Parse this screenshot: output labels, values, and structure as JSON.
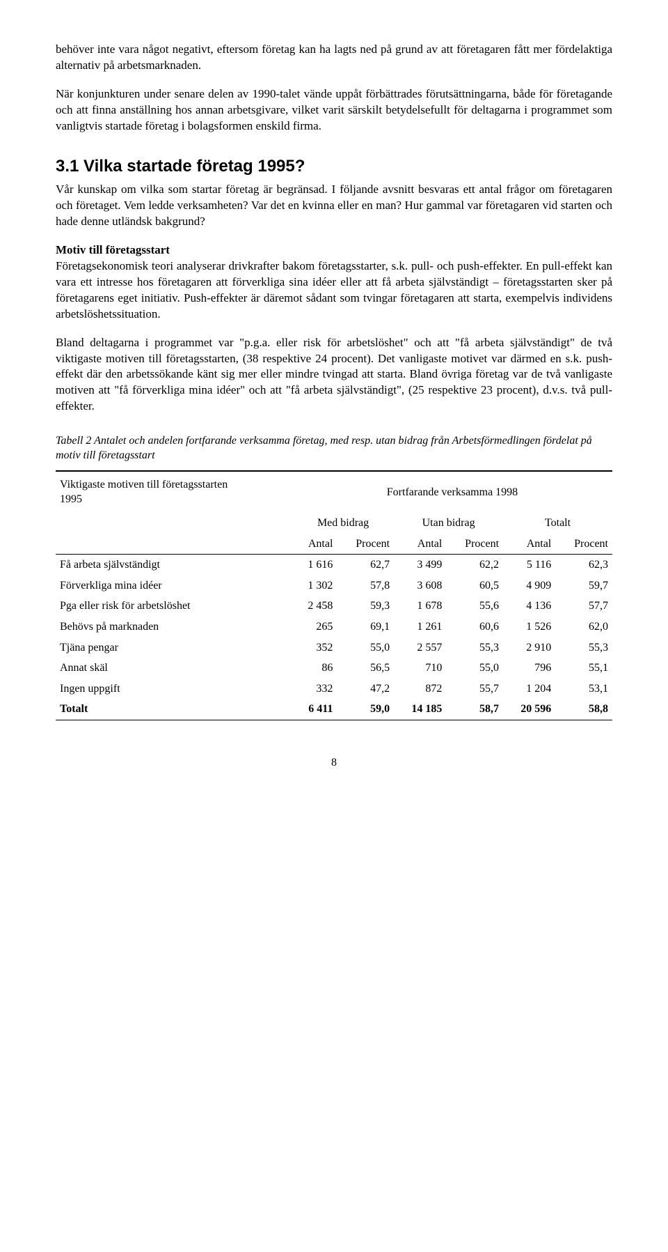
{
  "intro": {
    "p1": "behöver inte vara något negativt, eftersom företag kan ha lagts ned på grund av att företagaren fått mer fördelaktiga alternativ på arbetsmarknaden.",
    "p2": "När konjunkturen under senare delen av 1990-talet vände uppåt förbättrades förutsättningarna, både för företagande och att finna anställning hos annan arbetsgivare, vilket varit särskilt betydelsefullt för deltagarna i programmet som vanligtvis startade företag i bolagsformen enskild firma."
  },
  "heading": "3.1  Vilka startade företag 1995?",
  "body": {
    "p3": "Vår kunskap om vilka som startar företag är begränsad. I följande avsnitt besvaras ett antal frågor om företagaren och företaget. Vem ledde verksamheten? Var det en kvinna eller en man? Hur gammal var företagaren vid starten och hade denne utländsk bakgrund?",
    "sub1": "Motiv till företagsstart",
    "p4": "Företagsekonomisk teori analyserar drivkrafter bakom företagsstarter, s.k. pull- och push-effekter. En pull-effekt kan vara ett intresse hos företagaren att förverkliga sina idéer eller att få arbeta självständigt – företagsstarten sker på företagarens eget initiativ. Push-effekter är däremot sådant som tvingar företagaren att starta, exempelvis individens arbetslöshetssituation.",
    "p5": "Bland deltagarna i programmet var \"p.g.a. eller risk för arbetslöshet\" och att \"få arbeta självständigt\" de två viktigaste motiven till företagsstarten, (38 respektive 24 procent). Det vanligaste motivet var därmed en s.k. push-effekt där den arbetssökande känt sig mer eller mindre tvingad att starta. Bland övriga företag var de två vanligaste motiven att \"få förverkliga mina idéer\" och att \"få arbeta självständigt\", (25 respektive 23 procent), d.v.s. två pull-effekter."
  },
  "table": {
    "captionLabel": "Tabell 2",
    "captionText": "  Antalet och andelen fortfarande verksamma företag, med resp. utan bidrag från Arbetsförmedlingen fördelat på motiv till företagsstart",
    "colLeft1": "Viktigaste motiven till företagsstarten",
    "colLeft2": "1995",
    "colRight": "Fortfarande verksamma 1998",
    "group1": "Med bidrag",
    "group2": "Utan bidrag",
    "group3": "Totalt",
    "sub1": "Antal",
    "sub2": "Procent",
    "rows": [
      {
        "label": "Få arbeta självständigt",
        "a": "1 616",
        "b": "62,7",
        "c": "3 499",
        "d": "62,2",
        "e": "5 116",
        "f": "62,3"
      },
      {
        "label": "Förverkliga mina idéer",
        "a": "1 302",
        "b": "57,8",
        "c": "3 608",
        "d": "60,5",
        "e": "4 909",
        "f": "59,7"
      },
      {
        "label": "Pga eller risk för arbetslöshet",
        "a": "2 458",
        "b": "59,3",
        "c": "1 678",
        "d": "55,6",
        "e": "4 136",
        "f": "57,7"
      },
      {
        "label": "Behövs på marknaden",
        "a": "265",
        "b": "69,1",
        "c": "1 261",
        "d": "60,6",
        "e": "1 526",
        "f": "62,0"
      },
      {
        "label": "Tjäna pengar",
        "a": "352",
        "b": "55,0",
        "c": "2 557",
        "d": "55,3",
        "e": "2 910",
        "f": "55,3"
      },
      {
        "label": "Annat skäl",
        "a": "86",
        "b": "56,5",
        "c": "710",
        "d": "55,0",
        "e": "796",
        "f": "55,1"
      },
      {
        "label": "Ingen uppgift",
        "a": "332",
        "b": "47,2",
        "c": "872",
        "d": "55,7",
        "e": "1 204",
        "f": "53,1"
      }
    ],
    "total": {
      "label": "Totalt",
      "a": "6 411",
      "b": "59,0",
      "c": "14 185",
      "d": "58,7",
      "e": "20 596",
      "f": "58,8"
    }
  },
  "pageNumber": "8"
}
